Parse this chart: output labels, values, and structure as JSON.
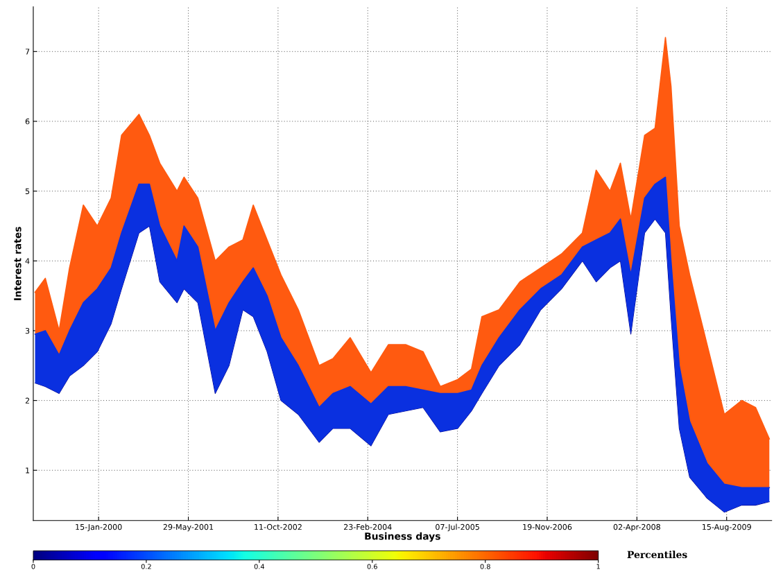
{
  "chart_data": {
    "type": "area",
    "xlabel": "Business days",
    "ylabel": "Interest rates",
    "clabel": "Percentiles",
    "x": [
      "1999-01-26",
      "1999-03-24",
      "1999-06-09",
      "1999-08-06",
      "1999-10-22",
      "2000-01-08",
      "2000-03-25",
      "2000-05-22",
      "2000-08-27",
      "2000-10-24",
      "2000-12-21",
      "2001-03-27",
      "2001-05-05",
      "2001-07-21",
      "2001-10-26",
      "2002-01-11",
      "2002-03-29",
      "2002-05-26",
      "2002-08-11",
      "2002-10-27",
      "2003-02-01",
      "2003-05-28",
      "2003-08-13",
      "2003-11-17",
      "2004-03-12",
      "2004-06-17",
      "2004-09-21",
      "2004-12-27",
      "2005-04-02",
      "2005-07-08",
      "2005-09-23",
      "2005-11-20",
      "2006-02-24",
      "2006-06-20",
      "2006-10-14",
      "2007-02-07",
      "2007-06-03",
      "2007-08-19",
      "2007-11-04",
      "2008-01-01",
      "2008-02-28",
      "2008-05-15",
      "2008-07-12",
      "2008-09-08",
      "2008-10-09",
      "2008-11-24",
      "2009-01-21",
      "2009-04-28",
      "2009-08-02",
      "2009-11-07",
      "2010-01-23",
      "2010-04-10"
    ],
    "series": [
      {
        "type": "line",
        "color": "#00008f",
        "values": [
          2.25,
          2.2,
          2.1,
          2.35,
          2.5,
          2.7,
          3.1,
          3.6,
          4.4,
          4.5,
          3.7,
          3.4,
          3.6,
          3.4,
          2.1,
          2.5,
          3.3,
          3.2,
          2.7,
          2.0,
          1.8,
          1.4,
          1.6,
          1.6,
          1.35,
          1.8,
          1.85,
          1.9,
          1.55,
          1.6,
          1.85,
          2.1,
          2.5,
          2.8,
          3.3,
          3.6,
          4.0,
          3.7,
          3.9,
          4.0,
          2.95,
          4.4,
          4.6,
          4.4,
          3.2,
          1.6,
          0.9,
          0.6,
          0.4,
          0.5,
          0.5,
          0.55
        ]
      },
      {
        "color": "#0a30e0",
        "values": [
          2.95,
          3.0,
          2.65,
          3.0,
          3.4,
          3.6,
          3.9,
          4.4,
          5.1,
          5.1,
          4.5,
          4.0,
          4.5,
          4.2,
          3.0,
          3.4,
          3.7,
          3.9,
          3.5,
          2.9,
          2.5,
          1.9,
          2.1,
          2.2,
          1.95,
          2.2,
          2.2,
          2.15,
          2.1,
          2.1,
          2.15,
          2.5,
          2.9,
          3.3,
          3.6,
          3.8,
          4.2,
          4.3,
          4.4,
          4.6,
          3.8,
          4.9,
          5.1,
          5.2,
          4.0,
          2.5,
          1.7,
          1.1,
          0.8,
          0.75,
          0.75,
          0.75
        ]
      },
      {
        "color": "#ff5a10",
        "values": [
          3.55,
          3.75,
          3.0,
          3.9,
          4.8,
          4.5,
          4.9,
          5.8,
          6.1,
          5.8,
          5.4,
          5.0,
          5.2,
          4.9,
          4.0,
          4.2,
          4.3,
          4.8,
          4.3,
          3.8,
          3.3,
          2.5,
          2.6,
          2.9,
          2.4,
          2.8,
          2.8,
          2.7,
          2.2,
          2.3,
          2.45,
          3.2,
          3.3,
          3.7,
          3.9,
          4.1,
          4.4,
          5.3,
          5.0,
          5.4,
          4.6,
          5.8,
          5.9,
          7.2,
          6.5,
          4.5,
          3.8,
          2.8,
          1.8,
          2.0,
          1.9,
          1.45
        ]
      }
    ],
    "xlim": [
      "1999-01-16",
      "2010-04-23"
    ],
    "xticks": [
      {
        "value": "2000-01-15",
        "label": "15-Jan-2000"
      },
      {
        "value": "2001-05-29",
        "label": "29-May-2001"
      },
      {
        "value": "2002-10-11",
        "label": "11-Oct-2002"
      },
      {
        "value": "2004-02-23",
        "label": "23-Feb-2004"
      },
      {
        "value": "2005-07-07",
        "label": "07-Jul-2005"
      },
      {
        "value": "2006-11-19",
        "label": "19-Nov-2006"
      },
      {
        "value": "2008-04-02",
        "label": "02-Apr-2008"
      },
      {
        "value": "2009-08-15",
        "label": "15-Aug-2009"
      }
    ],
    "ylim": [
      0.28,
      7.64
    ],
    "yticks": [
      1,
      2,
      3,
      4,
      5,
      6,
      7
    ],
    "clim": [
      0,
      1
    ],
    "cticks": [
      0,
      0.2,
      0.4,
      0.6,
      0.8,
      1
    ],
    "grid": true
  }
}
